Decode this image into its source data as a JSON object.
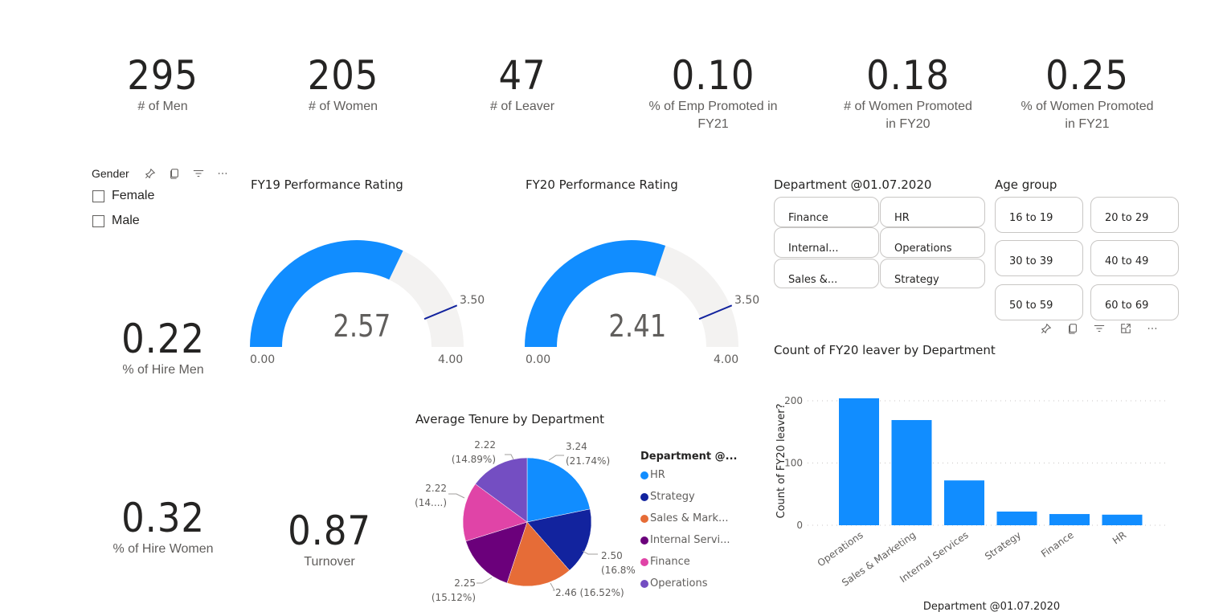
{
  "cards": [
    {
      "value": "295",
      "label": "# of Men"
    },
    {
      "value": "205",
      "label": "# of Women"
    },
    {
      "value": "47",
      "label": "# of Leaver"
    },
    {
      "value": "0.10",
      "label_line1": "% of Emp Promoted in",
      "label_line2": "FY21"
    },
    {
      "value": "0.18",
      "label_line1": "# of Women Promoted",
      "label_line2": "in FY20"
    },
    {
      "value": "0.25",
      "label_line1": "% of Women Promoted",
      "label_line2": "in FY21"
    },
    {
      "value": "0.22",
      "label": "% of Hire Men"
    },
    {
      "value": "0.32",
      "label": "% of Hire Women"
    },
    {
      "value": "0.87",
      "label": "Turnover"
    }
  ],
  "gender_slicer": {
    "title": "Gender",
    "options": [
      {
        "label": "Female",
        "checked": false
      },
      {
        "label": "Male",
        "checked": false
      }
    ],
    "header_icons": [
      "pin-icon",
      "copy-icon",
      "filter-icon",
      "more-options-icon"
    ]
  },
  "gauges": [
    {
      "title": "FY19 Performance Rating",
      "value": 2.57,
      "value_label": "2.57",
      "min": 0,
      "max": 4,
      "target": 3.5,
      "min_label": "0.00",
      "max_label": "4.00",
      "target_label": "3.50"
    },
    {
      "title": "FY20 Performance Rating",
      "value": 2.41,
      "value_label": "2.41",
      "min": 0,
      "max": 4,
      "target": 3.5,
      "min_label": "0.00",
      "max_label": "4.00",
      "target_label": "3.50"
    }
  ],
  "department_slicer": {
    "title": "Department @01.07.2020",
    "tiles": [
      "Finance",
      "HR",
      "Internal...",
      "Operations",
      "Sales &...",
      "Strategy"
    ]
  },
  "age_slicer": {
    "title": "Age group",
    "tiles": [
      "16 to 19",
      "20 to 29",
      "30 to 39",
      "40 to 49",
      "50 to 59",
      "60 to 69"
    ]
  },
  "visual_toolbar_icons": [
    "pin-icon",
    "copy-icon",
    "filter-icon",
    "focus-mode-icon",
    "more-options-icon"
  ],
  "colors": {
    "accent": "#118DFF",
    "gauge_track": "#F3F2F1",
    "target_line": "#12239E"
  },
  "chart_data": [
    {
      "type": "pie",
      "title": "Average Tenure by Department",
      "legend_title": "Department @...",
      "legend_position": "right",
      "categories": [
        "HR",
        "Strategy",
        "Sales & Marketing",
        "Internal Services",
        "Finance",
        "Operations"
      ],
      "legend_labels": [
        "HR",
        "Strategy",
        "Sales & Mark...",
        "Internal Servi...",
        "Finance",
        "Operations"
      ],
      "values": [
        3.24,
        2.5,
        2.46,
        2.25,
        2.22,
        2.22
      ],
      "percentages": [
        21.74,
        16.8,
        16.52,
        15.12,
        14.89,
        14.89
      ],
      "data_labels": [
        [
          "3.24",
          "(21.74%)"
        ],
        [
          "2.50",
          "(16.8%)"
        ],
        [
          "2.46 (16.52%)"
        ],
        [
          "2.25",
          "(15.12%)"
        ],
        [
          "2.22",
          "(14....)"
        ],
        [
          "2.22",
          "(14.89%)"
        ]
      ],
      "colors": [
        "#118DFF",
        "#12239E",
        "#E66C37",
        "#6B007B",
        "#E044A7",
        "#744EC2"
      ]
    },
    {
      "type": "bar",
      "title": "Count of FY20 leaver by Department",
      "xlabel": "Department @01.07.2020",
      "ylabel": "Count of FY20 leaver?",
      "categories": [
        "Operations",
        "Sales & Marketing",
        "Internal Services",
        "Strategy",
        "Finance",
        "HR"
      ],
      "values": [
        204,
        169,
        72,
        22,
        18,
        17
      ],
      "yticks": [
        0,
        100,
        200
      ],
      "ylim": [
        0,
        215
      ],
      "grid": true,
      "color": "#118DFF"
    }
  ]
}
